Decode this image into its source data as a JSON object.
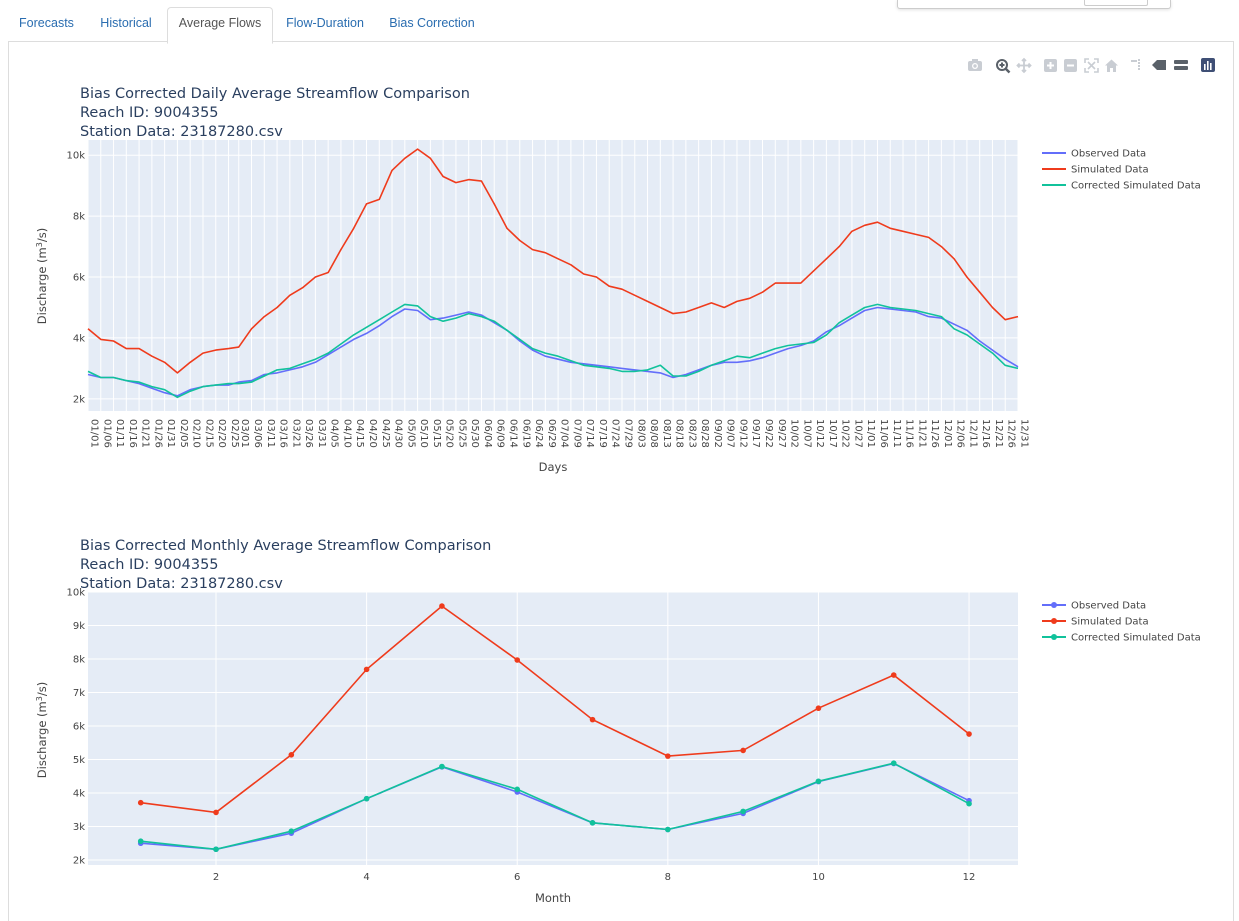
{
  "tabs": [
    {
      "label": "Forecasts",
      "active": false
    },
    {
      "label": "Historical",
      "active": false
    },
    {
      "label": "Average Flows",
      "active": true
    },
    {
      "label": "Flow-Duration",
      "active": false
    },
    {
      "label": "Bias Correction",
      "active": false
    }
  ],
  "modebar": [
    "camera-icon",
    "zoom-icon",
    "pan-icon",
    "zoom-in-icon",
    "zoom-out-icon",
    "autoscale-icon",
    "reset-axes-icon",
    "spike-lines-icon",
    "hover-closest-icon",
    "hover-compare-icon",
    "plotly-logo-icon"
  ],
  "colors": {
    "observed": "#636efa",
    "simulated": "#ef3b1c",
    "corrected": "#11c29b",
    "plot_bg": "#e5ecf6",
    "title": "#2a3f5f"
  },
  "chart_data": [
    {
      "type": "line",
      "title": "Bias Corrected Daily Average Streamflow Comparison",
      "subtitle_lines": [
        "Reach ID: 9004355",
        "Station Data: 23187280.csv"
      ],
      "xlabel": "Days",
      "ylabel_main": "Discharge (m",
      "ylabel_sup": "3",
      "ylabel_tail": "/s)",
      "ylim": [
        1600,
        10500
      ],
      "yticks": [
        2000,
        4000,
        6000,
        8000,
        10000
      ],
      "ytick_labels": [
        "2k",
        "4k",
        "6k",
        "8k",
        "10k"
      ],
      "x_ticks": [
        "01/01",
        "01/06",
        "01/11",
        "01/16",
        "01/21",
        "01/26",
        "01/31",
        "02/05",
        "02/10",
        "02/15",
        "02/20",
        "02/25",
        "03/01",
        "03/06",
        "03/11",
        "03/16",
        "03/21",
        "03/26",
        "03/31",
        "04/05",
        "04/10",
        "04/15",
        "04/20",
        "04/25",
        "04/30",
        "05/05",
        "05/10",
        "05/15",
        "05/20",
        "05/25",
        "05/30",
        "06/04",
        "06/09",
        "06/14",
        "06/19",
        "06/24",
        "06/29",
        "07/04",
        "07/09",
        "07/14",
        "07/19",
        "07/24",
        "07/29",
        "08/03",
        "08/08",
        "08/13",
        "08/18",
        "08/23",
        "08/28",
        "09/02",
        "09/07",
        "09/12",
        "09/17",
        "09/22",
        "09/27",
        "10/02",
        "10/07",
        "10/12",
        "10/17",
        "10/22",
        "10/27",
        "11/01",
        "11/06",
        "11/11",
        "11/16",
        "11/21",
        "11/26",
        "12/01",
        "12/06",
        "12/11",
        "12/16",
        "12/21",
        "12/26",
        "12/31"
      ],
      "grid": true,
      "legend_position": "top-right",
      "series": [
        {
          "name": "Observed Data",
          "key": "observed",
          "x": [
            "01/01",
            "01/06",
            "01/11",
            "01/16",
            "01/21",
            "01/26",
            "01/31",
            "02/05",
            "02/10",
            "02/15",
            "02/20",
            "02/25",
            "03/01",
            "03/06",
            "03/11",
            "03/16",
            "03/21",
            "03/26",
            "03/31",
            "04/05",
            "04/10",
            "04/15",
            "04/20",
            "04/25",
            "04/30",
            "05/05",
            "05/10",
            "05/15",
            "05/20",
            "05/25",
            "05/30",
            "06/04",
            "06/09",
            "06/14",
            "06/19",
            "06/24",
            "06/29",
            "07/04",
            "07/09",
            "07/14",
            "07/19",
            "07/24",
            "07/29",
            "08/03",
            "08/08",
            "08/13",
            "08/18",
            "08/23",
            "08/28",
            "09/02",
            "09/07",
            "09/12",
            "09/17",
            "09/22",
            "09/27",
            "10/02",
            "10/07",
            "10/12",
            "10/17",
            "10/22",
            "10/27",
            "11/01",
            "11/06",
            "11/11",
            "11/16",
            "11/21",
            "11/26",
            "12/01",
            "12/06",
            "12/11",
            "12/16",
            "12/21",
            "12/26",
            "12/31"
          ],
          "y": [
            2800,
            2700,
            2700,
            2600,
            2500,
            2350,
            2200,
            2100,
            2300,
            2400,
            2450,
            2450,
            2550,
            2600,
            2800,
            2850,
            2950,
            3050,
            3200,
            3450,
            3700,
            3950,
            4150,
            4400,
            4700,
            4950,
            4900,
            4600,
            4650,
            4750,
            4850,
            4750,
            4500,
            4250,
            3900,
            3600,
            3400,
            3300,
            3200,
            3150,
            3100,
            3050,
            3000,
            2950,
            2900,
            2850,
            2700,
            2800,
            2950,
            3100,
            3200,
            3200,
            3250,
            3350,
            3500,
            3650,
            3750,
            3900,
            4200,
            4400,
            4650,
            4900,
            5000,
            4950,
            4900,
            4850,
            4700,
            4650,
            4450,
            4250,
            3900,
            3600,
            3300,
            3050
          ]
        },
        {
          "name": "Simulated Data",
          "key": "simulated",
          "x": [
            "01/01",
            "01/06",
            "01/11",
            "01/16",
            "01/21",
            "01/26",
            "01/31",
            "02/05",
            "02/10",
            "02/15",
            "02/20",
            "02/25",
            "03/01",
            "03/06",
            "03/11",
            "03/16",
            "03/21",
            "03/26",
            "03/31",
            "04/05",
            "04/10",
            "04/15",
            "04/20",
            "04/25",
            "04/30",
            "05/05",
            "05/10",
            "05/15",
            "05/20",
            "05/25",
            "05/30",
            "06/04",
            "06/09",
            "06/14",
            "06/19",
            "06/24",
            "06/29",
            "07/04",
            "07/09",
            "07/14",
            "07/19",
            "07/24",
            "07/29",
            "08/03",
            "08/08",
            "08/13",
            "08/18",
            "08/23",
            "08/28",
            "09/02",
            "09/07",
            "09/12",
            "09/17",
            "09/22",
            "09/27",
            "10/02",
            "10/07",
            "10/12",
            "10/17",
            "10/22",
            "10/27",
            "11/01",
            "11/06",
            "11/11",
            "11/16",
            "11/21",
            "11/26",
            "12/01",
            "12/06",
            "12/11",
            "12/16",
            "12/21",
            "12/26",
            "12/31"
          ],
          "y": [
            4300,
            3950,
            3900,
            3650,
            3650,
            3400,
            3200,
            2850,
            3200,
            3500,
            3600,
            3650,
            3700,
            4300,
            4700,
            5000,
            5400,
            5650,
            6000,
            6150,
            6900,
            7600,
            8400,
            8550,
            9500,
            9900,
            10200,
            9900,
            9300,
            9100,
            9200,
            9150,
            8400,
            7600,
            7200,
            6900,
            6800,
            6600,
            6400,
            6100,
            6000,
            5700,
            5600,
            5400,
            5200,
            5000,
            4800,
            4850,
            5000,
            5150,
            5000,
            5200,
            5300,
            5500,
            5800,
            5800,
            5800,
            6200,
            6600,
            7000,
            7500,
            7700,
            7800,
            7600,
            7500,
            7400,
            7300,
            7000,
            6600,
            6000,
            5500,
            5000,
            4600,
            4700
          ]
        },
        {
          "name": "Corrected Simulated Data",
          "key": "corrected",
          "x": [
            "01/01",
            "01/06",
            "01/11",
            "01/16",
            "01/21",
            "01/26",
            "01/31",
            "02/05",
            "02/10",
            "02/15",
            "02/20",
            "02/25",
            "03/01",
            "03/06",
            "03/11",
            "03/16",
            "03/21",
            "03/26",
            "03/31",
            "04/05",
            "04/10",
            "04/15",
            "04/20",
            "04/25",
            "04/30",
            "05/05",
            "05/10",
            "05/15",
            "05/20",
            "05/25",
            "05/30",
            "06/04",
            "06/09",
            "06/14",
            "06/19",
            "06/24",
            "06/29",
            "07/04",
            "07/09",
            "07/14",
            "07/19",
            "07/24",
            "07/29",
            "08/03",
            "08/08",
            "08/13",
            "08/18",
            "08/23",
            "08/28",
            "09/02",
            "09/07",
            "09/12",
            "09/17",
            "09/22",
            "09/27",
            "10/02",
            "10/07",
            "10/12",
            "10/17",
            "10/22",
            "10/27",
            "11/01",
            "11/06",
            "11/11",
            "11/16",
            "11/21",
            "11/26",
            "12/01",
            "12/06",
            "12/11",
            "12/16",
            "12/21",
            "12/26",
            "12/31"
          ],
          "y": [
            2900,
            2700,
            2700,
            2600,
            2550,
            2400,
            2300,
            2050,
            2250,
            2400,
            2450,
            2500,
            2500,
            2550,
            2750,
            2950,
            3000,
            3150,
            3300,
            3500,
            3800,
            4100,
            4350,
            4600,
            4850,
            5100,
            5050,
            4700,
            4550,
            4650,
            4800,
            4700,
            4550,
            4250,
            3950,
            3650,
            3500,
            3400,
            3250,
            3100,
            3050,
            3000,
            2900,
            2900,
            2950,
            3100,
            2750,
            2750,
            2900,
            3100,
            3250,
            3400,
            3350,
            3500,
            3650,
            3750,
            3800,
            3850,
            4100,
            4500,
            4750,
            5000,
            5100,
            5000,
            4950,
            4900,
            4800,
            4700,
            4300,
            4100,
            3800,
            3500,
            3100,
            3000
          ]
        }
      ]
    },
    {
      "type": "line",
      "title": "Bias Corrected Monthly Average Streamflow Comparison",
      "subtitle_lines": [
        "Reach ID: 9004355",
        "Station Data: 23187280.csv"
      ],
      "xlabel": "Month",
      "ylabel_main": "Discharge (m",
      "ylabel_sup": "3",
      "ylabel_tail": "/s)",
      "xlim": [
        0.3,
        12.65
      ],
      "ylim": [
        1850,
        10000
      ],
      "xticks": [
        2,
        4,
        6,
        8,
        10,
        12
      ],
      "yticks": [
        2000,
        3000,
        4000,
        5000,
        6000,
        7000,
        8000,
        9000,
        10000
      ],
      "ytick_labels": [
        "2k",
        "3k",
        "4k",
        "5k",
        "6k",
        "7k",
        "8k",
        "9k",
        "10k"
      ],
      "grid": true,
      "legend_position": "top-right",
      "markers": true,
      "series": [
        {
          "name": "Observed Data",
          "key": "observed",
          "x": [
            1,
            2,
            3,
            4,
            5,
            6,
            7,
            8,
            9,
            10,
            11,
            12
          ],
          "y": [
            2500,
            2320,
            2800,
            3830,
            4780,
            4030,
            3110,
            2910,
            3390,
            4340,
            4880,
            3770
          ]
        },
        {
          "name": "Simulated Data",
          "key": "simulated",
          "x": [
            1,
            2,
            3,
            4,
            5,
            6,
            7,
            8,
            9,
            10,
            11,
            12
          ],
          "y": [
            3710,
            3420,
            5140,
            7690,
            9580,
            7970,
            6190,
            5100,
            5270,
            6530,
            7520,
            5760
          ]
        },
        {
          "name": "Corrected Simulated Data",
          "key": "corrected",
          "x": [
            1,
            2,
            3,
            4,
            5,
            6,
            7,
            8,
            9,
            10,
            11,
            12
          ],
          "y": [
            2560,
            2320,
            2860,
            3830,
            4790,
            4110,
            3110,
            2910,
            3450,
            4350,
            4890,
            3680
          ]
        }
      ]
    }
  ]
}
